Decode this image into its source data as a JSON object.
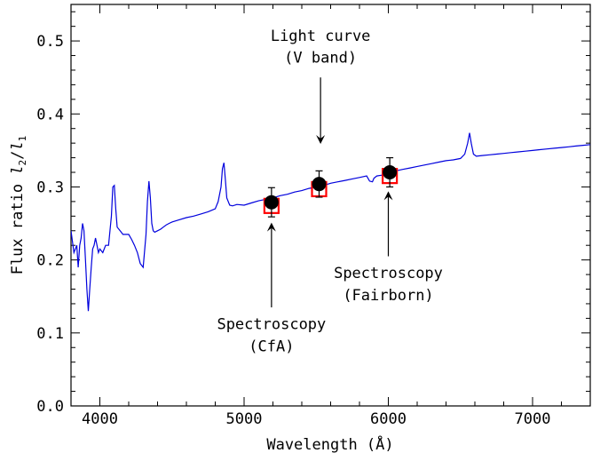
{
  "chart_data": {
    "type": "line",
    "title": "",
    "xlabel": "Wavelength (Å)",
    "ylabel_prefix": "Flux ratio ",
    "ylabel_l2": "l",
    "ylabel_sub2": "2",
    "ylabel_slash": "/",
    "ylabel_l1": "l",
    "ylabel_sub1": "1",
    "xlim": [
      3800,
      7400
    ],
    "ylim": [
      0.0,
      0.55
    ],
    "x_ticks": [
      4000,
      5000,
      6000,
      7000
    ],
    "x_tick_labels": [
      "4000",
      "5000",
      "6000",
      "7000"
    ],
    "y_ticks": [
      0.0,
      0.1,
      0.2,
      0.3,
      0.4,
      0.5
    ],
    "y_tick_labels": [
      "0.0",
      "0.1",
      "0.2",
      "0.3",
      "0.4",
      "0.5"
    ],
    "grid": false,
    "line_color": "#0000dd",
    "marker_color": "#000000",
    "square_color": "#ff0000",
    "spectrum": {
      "x": [
        3800,
        3820,
        3840,
        3850,
        3860,
        3870,
        3880,
        3890,
        3900,
        3910,
        3920,
        3930,
        3940,
        3950,
        3960,
        3970,
        3980,
        3990,
        4000,
        4020,
        4040,
        4060,
        4080,
        4090,
        4100,
        4110,
        4120,
        4140,
        4160,
        4180,
        4200,
        4220,
        4240,
        4260,
        4280,
        4300,
        4320,
        4330,
        4340,
        4350,
        4360,
        4370,
        4380,
        4400,
        4420,
        4440,
        4460,
        4480,
        4500,
        4550,
        4600,
        4650,
        4700,
        4750,
        4800,
        4820,
        4840,
        4850,
        4860,
        4870,
        4880,
        4900,
        4920,
        4950,
        5000,
        5050,
        5100,
        5150,
        5200,
        5250,
        5300,
        5350,
        5400,
        5450,
        5500,
        5550,
        5600,
        5650,
        5700,
        5750,
        5800,
        5850,
        5870,
        5890,
        5900,
        5920,
        5950,
        6000,
        6050,
        6100,
        6150,
        6200,
        6250,
        6300,
        6350,
        6400,
        6450,
        6500,
        6530,
        6550,
        6563,
        6575,
        6590,
        6610,
        6650,
        6700,
        6750,
        6800,
        6850,
        6900,
        6950,
        7000,
        7050,
        7100,
        7150,
        7200,
        7250,
        7300,
        7350,
        7400
      ],
      "y": [
        0.24,
        0.21,
        0.22,
        0.19,
        0.22,
        0.23,
        0.25,
        0.24,
        0.2,
        0.16,
        0.13,
        0.16,
        0.19,
        0.215,
        0.22,
        0.23,
        0.22,
        0.21,
        0.215,
        0.21,
        0.22,
        0.22,
        0.26,
        0.3,
        0.302,
        0.27,
        0.245,
        0.24,
        0.235,
        0.235,
        0.235,
        0.228,
        0.22,
        0.21,
        0.195,
        0.19,
        0.235,
        0.28,
        0.308,
        0.285,
        0.25,
        0.24,
        0.238,
        0.24,
        0.242,
        0.245,
        0.248,
        0.25,
        0.252,
        0.255,
        0.258,
        0.26,
        0.263,
        0.266,
        0.27,
        0.28,
        0.3,
        0.325,
        0.333,
        0.31,
        0.285,
        0.275,
        0.274,
        0.276,
        0.275,
        0.278,
        0.281,
        0.283,
        0.285,
        0.288,
        0.29,
        0.293,
        0.295,
        0.298,
        0.3,
        0.302,
        0.305,
        0.307,
        0.309,
        0.311,
        0.313,
        0.315,
        0.308,
        0.307,
        0.312,
        0.315,
        0.316,
        0.318,
        0.322,
        0.324,
        0.326,
        0.328,
        0.33,
        0.332,
        0.334,
        0.336,
        0.337,
        0.339,
        0.345,
        0.36,
        0.374,
        0.36,
        0.345,
        0.342,
        0.343,
        0.344,
        0.345,
        0.346,
        0.347,
        0.348,
        0.349,
        0.35,
        0.351,
        0.352,
        0.353,
        0.354,
        0.355,
        0.356,
        0.357,
        0.358
      ]
    },
    "points": [
      {
        "x": 5190,
        "y": 0.279,
        "yerr": 0.02,
        "square_y": 0.274
      },
      {
        "x": 5520,
        "y": 0.304,
        "yerr": 0.018,
        "square_y": 0.297
      },
      {
        "x": 6010,
        "y": 0.32,
        "yerr": 0.02,
        "square_y": 0.315
      }
    ],
    "annotations": [
      {
        "id": "light-curve",
        "lines": [
          "Light curve",
          "(V band)"
        ],
        "arrow_x": 5530,
        "arrow_from": 0.45,
        "arrow_to": 0.365,
        "text_y": [
          0.5,
          0.47
        ]
      },
      {
        "id": "spectroscopy-cfa",
        "lines": [
          "Spectroscopy",
          "(CfA)"
        ],
        "arrow_x": 5190,
        "arrow_from": 0.135,
        "arrow_to": 0.245,
        "text_y": [
          0.105,
          0.075
        ]
      },
      {
        "id": "spectroscopy-fairborn",
        "lines": [
          "Spectroscopy",
          "(Fairborn)"
        ],
        "arrow_x": 6000,
        "arrow_from": 0.205,
        "arrow_to": 0.288,
        "text_y": [
          0.175,
          0.145
        ]
      }
    ]
  }
}
